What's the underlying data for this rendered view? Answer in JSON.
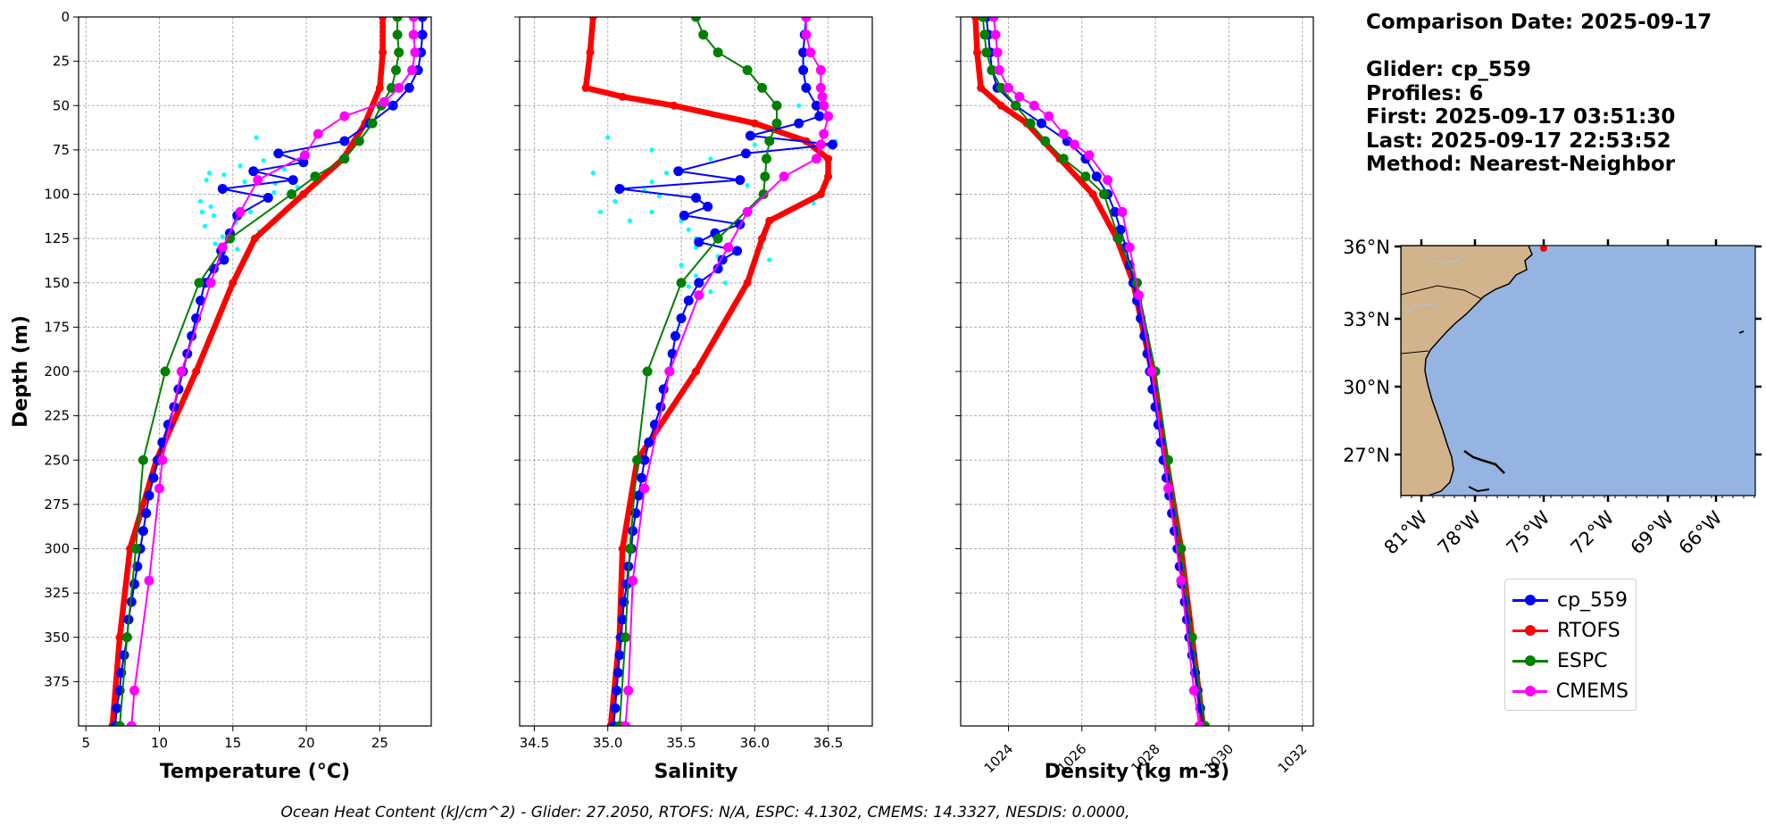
{
  "chart_data": [
    {
      "type": "line",
      "panel": "temperature",
      "xlabel": "Temperature (°C)",
      "ylabel": "Depth (m)",
      "xlim": [
        4.5,
        28.5
      ],
      "ylim": [
        400,
        0
      ],
      "xticks": [
        5,
        10,
        15,
        20,
        25
      ],
      "yticks": [
        0,
        25,
        50,
        75,
        100,
        125,
        150,
        175,
        200,
        225,
        250,
        275,
        300,
        325,
        350,
        375
      ],
      "grid": true,
      "series": [
        {
          "name": "cp_559",
          "color": "#0000ff",
          "depth": [
            0,
            10,
            20,
            30,
            40,
            50,
            60,
            70,
            77,
            82,
            87,
            92,
            97,
            102,
            112,
            122,
            132,
            137,
            142,
            150,
            160,
            170,
            180,
            190,
            200,
            210,
            220,
            230,
            240,
            250,
            260,
            270,
            280,
            290,
            300,
            310,
            320,
            330,
            340,
            350,
            360,
            370,
            380,
            390,
            400
          ],
          "values": [
            27.9,
            27.9,
            27.8,
            27.6,
            27.0,
            25.9,
            24.3,
            22.6,
            18.1,
            19.8,
            16.4,
            19.1,
            14.3,
            17.4,
            15.3,
            14.8,
            14.2,
            14.4,
            13.7,
            13.1,
            12.8,
            12.5,
            12.2,
            11.9,
            11.6,
            11.3,
            11.0,
            10.6,
            10.2,
            9.9,
            9.6,
            9.3,
            9.1,
            8.9,
            8.7,
            8.5,
            8.3,
            8.1,
            7.9,
            7.8,
            7.6,
            7.4,
            7.3,
            7.1,
            7.0
          ]
        },
        {
          "name": "RTOFS",
          "color": "#ff0000",
          "depth": [
            0,
            20,
            40,
            60,
            80,
            100,
            125,
            150,
            200,
            250,
            300,
            350,
            400
          ],
          "values": [
            25.2,
            25.2,
            25.0,
            24.0,
            22.5,
            19.8,
            16.5,
            15.0,
            12.5,
            9.8,
            8.0,
            7.3,
            6.8
          ]
        },
        {
          "name": "ESPC",
          "color": "#008000",
          "depth": [
            0,
            10,
            20,
            30,
            40,
            50,
            60,
            70,
            80,
            90,
            100,
            125,
            150,
            200,
            250,
            300,
            350,
            400
          ],
          "values": [
            26.2,
            26.2,
            26.3,
            26.1,
            25.8,
            25.1,
            24.5,
            23.6,
            22.6,
            20.6,
            19.0,
            14.8,
            12.7,
            10.4,
            8.9,
            8.4,
            7.8,
            7.3
          ]
        },
        {
          "name": "CMEMS",
          "color": "#ff00ff",
          "depth": [
            0,
            10,
            20,
            30,
            40,
            48,
            56,
            66,
            78,
            92,
            110,
            130,
            150,
            200,
            250,
            266,
            318,
            380,
            400
          ],
          "values": [
            27.3,
            27.3,
            27.4,
            27.2,
            26.3,
            25.3,
            22.6,
            20.8,
            19.9,
            16.7,
            15.5,
            14.3,
            13.5,
            11.5,
            10.2,
            10.0,
            9.3,
            8.3,
            8.1
          ]
        }
      ]
    },
    {
      "type": "line",
      "panel": "salinity",
      "xlabel": "Salinity",
      "xlim": [
        34.4,
        36.8
      ],
      "ylim": [
        400,
        0
      ],
      "xticks": [
        34.5,
        35.0,
        35.5,
        36.0,
        36.5
      ],
      "grid": true,
      "series": [
        {
          "name": "cp_559",
          "color": "#0000ff",
          "depth": [
            0,
            10,
            20,
            30,
            40,
            50,
            56,
            60,
            67,
            72,
            77,
            87,
            92,
            97,
            102,
            107,
            112,
            117,
            122,
            127,
            132,
            137,
            142,
            150,
            160,
            170,
            180,
            190,
            200,
            210,
            220,
            230,
            240,
            250,
            260,
            270,
            280,
            290,
            300,
            310,
            320,
            330,
            340,
            350,
            360,
            370,
            380,
            390,
            400
          ],
          "values": [
            36.35,
            36.34,
            36.33,
            36.33,
            36.35,
            36.42,
            36.44,
            36.3,
            35.97,
            36.53,
            35.94,
            35.48,
            35.9,
            35.08,
            35.6,
            35.68,
            35.52,
            35.9,
            35.73,
            35.62,
            35.88,
            35.78,
            35.75,
            35.62,
            35.55,
            35.5,
            35.46,
            35.44,
            35.42,
            35.38,
            35.36,
            35.32,
            35.28,
            35.25,
            35.23,
            35.21,
            35.19,
            35.17,
            35.16,
            35.14,
            35.13,
            35.11,
            35.1,
            35.09,
            35.08,
            35.07,
            35.06,
            35.05,
            35.04
          ]
        },
        {
          "name": "RTOFS",
          "color": "#ff0000",
          "depth": [
            0,
            20,
            40,
            45,
            50,
            60,
            70,
            80,
            90,
            100,
            115,
            125,
            150,
            200,
            250,
            300,
            350,
            400
          ],
          "values": [
            34.9,
            34.88,
            34.85,
            35.1,
            35.45,
            36.0,
            36.35,
            36.5,
            36.5,
            36.45,
            36.1,
            36.05,
            35.95,
            35.6,
            35.2,
            35.1,
            35.08,
            35.02
          ]
        },
        {
          "name": "ESPC",
          "color": "#008000",
          "depth": [
            0,
            10,
            20,
            30,
            40,
            50,
            60,
            70,
            80,
            90,
            100,
            125,
            150,
            200,
            250,
            300,
            350,
            400
          ],
          "values": [
            35.6,
            35.65,
            35.75,
            35.95,
            36.05,
            36.15,
            36.15,
            36.1,
            36.08,
            36.07,
            36.06,
            35.75,
            35.5,
            35.27,
            35.2,
            35.15,
            35.12,
            35.08
          ]
        },
        {
          "name": "CMEMS",
          "color": "#ff00ff",
          "depth": [
            0,
            10,
            20,
            30,
            40,
            45,
            50,
            56,
            66,
            72,
            80,
            90,
            110,
            130,
            157,
            200,
            266,
            318,
            380,
            400
          ],
          "values": [
            36.35,
            36.35,
            36.38,
            36.45,
            36.45,
            36.46,
            36.47,
            36.5,
            36.47,
            36.45,
            36.42,
            36.2,
            35.95,
            35.82,
            35.62,
            35.42,
            35.25,
            35.17,
            35.14,
            35.12
          ]
        }
      ]
    },
    {
      "type": "line",
      "panel": "density",
      "xlabel": "Density (kg m-3)",
      "xlim": [
        1022.7,
        1032.3
      ],
      "ylim": [
        400,
        0
      ],
      "xticks": [
        1024,
        1026,
        1028,
        1030,
        1032
      ],
      "grid": true,
      "series": [
        {
          "name": "cp_559",
          "color": "#0000ff",
          "depth": [
            0,
            10,
            20,
            30,
            40,
            50,
            60,
            70,
            80,
            90,
            100,
            110,
            120,
            130,
            140,
            150,
            160,
            170,
            180,
            190,
            200,
            210,
            220,
            230,
            240,
            250,
            260,
            270,
            280,
            290,
            300,
            310,
            320,
            330,
            340,
            350,
            360,
            370,
            380,
            390,
            400
          ],
          "values": [
            1023.4,
            1023.45,
            1023.5,
            1023.55,
            1023.7,
            1024.2,
            1024.9,
            1025.6,
            1026.1,
            1026.4,
            1026.7,
            1026.9,
            1027.05,
            1027.2,
            1027.3,
            1027.4,
            1027.5,
            1027.6,
            1027.7,
            1027.78,
            1027.85,
            1027.92,
            1028.0,
            1028.08,
            1028.15,
            1028.22,
            1028.3,
            1028.38,
            1028.45,
            1028.52,
            1028.6,
            1028.66,
            1028.72,
            1028.8,
            1028.86,
            1028.92,
            1029.0,
            1029.08,
            1029.15,
            1029.22,
            1029.3
          ]
        },
        {
          "name": "RTOFS",
          "color": "#ff0000",
          "depth": [
            0,
            20,
            40,
            50,
            60,
            80,
            100,
            125,
            150,
            200,
            250,
            300,
            350,
            400
          ],
          "values": [
            1023.1,
            1023.15,
            1023.25,
            1023.8,
            1024.5,
            1025.4,
            1026.3,
            1026.95,
            1027.4,
            1027.9,
            1028.3,
            1028.7,
            1029.0,
            1029.3
          ]
        },
        {
          "name": "ESPC",
          "color": "#008000",
          "depth": [
            0,
            10,
            20,
            30,
            40,
            50,
            60,
            70,
            80,
            90,
            100,
            125,
            150,
            200,
            250,
            300,
            350,
            400
          ],
          "values": [
            1023.3,
            1023.35,
            1023.4,
            1023.55,
            1023.8,
            1024.2,
            1024.6,
            1025.0,
            1025.5,
            1026.1,
            1026.6,
            1027.0,
            1027.5,
            1028.0,
            1028.35,
            1028.7,
            1029.0,
            1029.35
          ]
        },
        {
          "name": "CMEMS",
          "color": "#ff00ff",
          "depth": [
            0,
            10,
            20,
            30,
            40,
            45,
            50,
            56,
            66,
            72,
            78,
            92,
            110,
            130,
            157,
            200,
            266,
            318,
            380,
            400
          ],
          "values": [
            1023.6,
            1023.65,
            1023.7,
            1023.75,
            1024.0,
            1024.3,
            1024.7,
            1025.1,
            1025.5,
            1025.8,
            1026.2,
            1026.7,
            1027.1,
            1027.3,
            1027.55,
            1027.9,
            1028.35,
            1028.7,
            1029.05,
            1029.2
          ]
        }
      ]
    }
  ],
  "cyan_samples": {
    "temperature": [
      [
        13.4,
        88
      ],
      [
        14.4,
        89
      ],
      [
        13.2,
        92
      ],
      [
        15.8,
        93
      ],
      [
        17.9,
        94
      ],
      [
        12.8,
        104
      ],
      [
        13.5,
        107
      ],
      [
        12.9,
        110
      ],
      [
        16.2,
        110
      ],
      [
        13.7,
        112
      ],
      [
        15.2,
        116
      ],
      [
        13.1,
        118
      ],
      [
        16.8,
        121
      ],
      [
        14.6,
        122
      ],
      [
        13.8,
        128
      ],
      [
        15.3,
        131
      ],
      [
        16.0,
        134
      ],
      [
        15.5,
        84
      ],
      [
        17.1,
        81
      ],
      [
        18.5,
        86
      ],
      [
        16.6,
        68
      ],
      [
        17.8,
        99
      ],
      [
        19.4,
        96
      ],
      [
        14.3,
        124
      ]
    ],
    "salinity": [
      [
        35.0,
        68
      ],
      [
        34.9,
        88
      ],
      [
        35.1,
        96
      ],
      [
        35.05,
        104
      ],
      [
        34.95,
        110
      ],
      [
        35.15,
        115
      ],
      [
        35.25,
        98
      ],
      [
        35.3,
        75
      ],
      [
        35.3,
        110
      ],
      [
        35.5,
        115
      ],
      [
        35.55,
        120
      ],
      [
        35.6,
        125
      ],
      [
        35.6,
        130
      ],
      [
        35.5,
        140
      ],
      [
        35.6,
        146
      ],
      [
        35.55,
        152
      ],
      [
        35.7,
        155
      ],
      [
        35.75,
        135
      ],
      [
        35.8,
        150
      ],
      [
        36.05,
        130
      ],
      [
        36.1,
        137
      ],
      [
        36.4,
        105
      ],
      [
        36.5,
        80
      ],
      [
        36.3,
        50
      ],
      [
        36.45,
        45
      ],
      [
        36.55,
        70
      ],
      [
        36.0,
        72
      ],
      [
        35.95,
        95
      ],
      [
        35.7,
        80
      ],
      [
        35.4,
        88
      ],
      [
        35.35,
        101
      ],
      [
        35.3,
        93
      ]
    ]
  },
  "map": {
    "yticks": [
      "36°N",
      "33°N",
      "30°N",
      "27°N"
    ],
    "xticks": [
      "81°W",
      "78°W",
      "75°W",
      "72°W",
      "69°W",
      "66°W"
    ],
    "land_color": "#d2b48c",
    "ocean_color": "#96b4e1"
  },
  "info": {
    "comparison_date": "Comparison Date: 2025-09-17",
    "glider": "Glider: cp_559",
    "profiles": "Profiles: 6",
    "first": "First: 2025-09-17 03:51:30",
    "last": "Last: 2025-09-17 22:53:52",
    "method": "Method: Nearest-Neighbor"
  },
  "legend": [
    {
      "label": "cp_559",
      "color": "#0000ff"
    },
    {
      "label": "RTOFS",
      "color": "#ff0000"
    },
    {
      "label": "ESPC",
      "color": "#008000"
    },
    {
      "label": "CMEMS",
      "color": "#ff00ff"
    }
  ],
  "footer": "Ocean Heat Content (kJ/cm^2) - Glider: 27.2050,  RTOFS: N/A,  ESPC: 4.1302,  CMEMS: 14.3327,  NESDIS: 0.0000,"
}
